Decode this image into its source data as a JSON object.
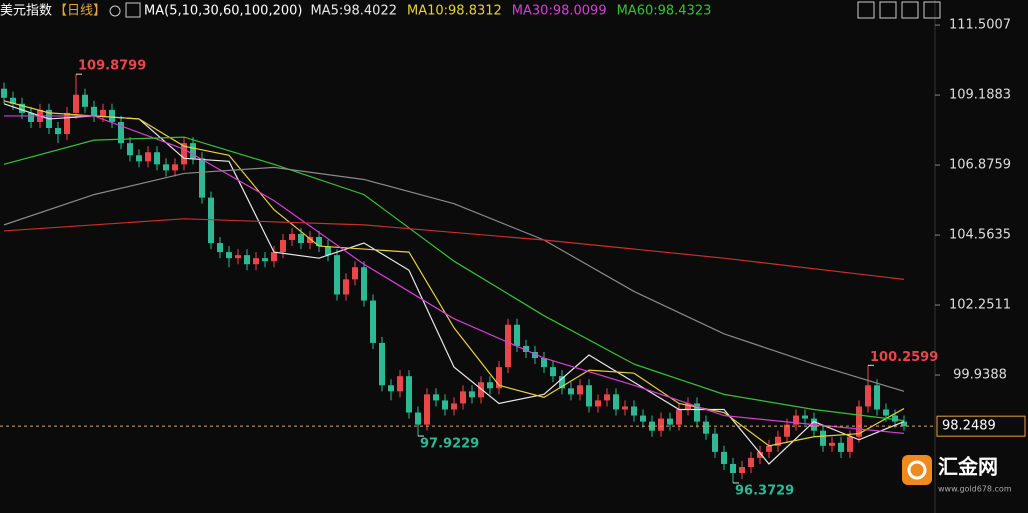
{
  "chart_data": {
    "type": "candlestick",
    "title": "美元指数",
    "period": "【日线】",
    "ma_label": "MA(5,10,30,60,100,200)",
    "up_color": "#e8464b",
    "down_color": "#2fb894",
    "open": [
      109.4,
      109.1,
      108.9,
      108.6,
      108.3,
      108.7,
      108.1,
      107.9,
      108.6,
      109.2,
      108.8,
      108.5,
      108.7,
      108.3,
      107.6,
      107.2,
      107.0,
      107.3,
      106.9,
      106.7,
      106.9,
      107.6,
      107.1,
      105.8,
      104.3,
      104.0,
      103.8,
      103.9,
      103.6,
      103.8,
      103.7,
      104.0,
      104.4,
      104.6,
      104.3,
      104.5,
      104.2,
      103.9,
      102.6,
      103.1,
      103.5,
      102.4,
      101.0,
      99.6,
      99.4,
      99.9,
      98.7,
      98.3,
      99.3,
      99.1,
      98.8,
      99.0,
      99.4,
      99.2,
      99.7,
      99.5,
      100.2,
      101.6,
      100.9,
      100.7,
      100.5,
      100.2,
      99.9,
      99.5,
      99.3,
      99.6,
      98.9,
      99.1,
      99.3,
      98.8,
      98.9,
      98.6,
      98.4,
      98.1,
      98.5,
      98.3,
      98.8,
      99.0,
      98.4,
      98.0,
      97.4,
      97.0,
      96.7,
      96.9,
      97.2,
      97.4,
      97.6,
      97.9,
      98.3,
      98.6,
      98.5,
      98.1,
      97.6,
      97.7,
      97.4,
      97.9,
      98.9,
      99.6,
      98.8,
      98.6,
      98.4
    ],
    "high": [
      109.6,
      109.3,
      109.1,
      108.8,
      108.9,
      108.9,
      108.3,
      108.8,
      109.8799,
      109.4,
      109.0,
      108.9,
      108.9,
      108.5,
      107.8,
      107.4,
      107.5,
      107.5,
      107.1,
      107.1,
      107.8,
      107.8,
      107.3,
      106.0,
      104.5,
      104.2,
      104.1,
      104.1,
      104.0,
      104.0,
      104.2,
      104.6,
      104.8,
      104.8,
      104.7,
      104.7,
      104.4,
      104.1,
      103.3,
      103.7,
      103.7,
      102.6,
      101.2,
      99.8,
      100.1,
      100.1,
      98.9,
      99.5,
      99.5,
      99.3,
      99.2,
      99.6,
      99.6,
      99.9,
      99.9,
      100.4,
      101.8,
      101.8,
      101.1,
      100.9,
      100.7,
      100.4,
      100.1,
      99.7,
      99.8,
      99.8,
      99.3,
      99.5,
      99.5,
      99.1,
      99.1,
      98.8,
      98.6,
      98.7,
      98.7,
      99.0,
      99.2,
      99.2,
      98.6,
      98.2,
      97.6,
      97.2,
      97.1,
      97.4,
      97.6,
      97.8,
      98.1,
      98.5,
      98.8,
      98.8,
      98.7,
      98.3,
      97.9,
      97.9,
      98.1,
      99.1,
      100.2599,
      99.8,
      99.0,
      98.8,
      98.6
    ],
    "low": [
      108.9,
      108.7,
      108.4,
      108.1,
      108.1,
      107.9,
      107.6,
      107.7,
      108.4,
      108.6,
      108.3,
      108.3,
      108.1,
      107.4,
      107.0,
      106.8,
      106.8,
      106.7,
      106.5,
      106.5,
      106.7,
      106.9,
      105.6,
      104.1,
      103.8,
      103.5,
      103.6,
      103.4,
      103.4,
      103.5,
      103.5,
      103.8,
      104.2,
      104.1,
      104.1,
      104.0,
      103.7,
      102.4,
      102.4,
      102.9,
      102.2,
      100.8,
      99.4,
      99.1,
      99.2,
      98.5,
      97.9229,
      98.1,
      98.9,
      98.6,
      98.6,
      98.8,
      99.0,
      99.0,
      99.3,
      99.3,
      100.0,
      100.7,
      100.5,
      100.3,
      100.0,
      99.7,
      99.3,
      99.1,
      99.1,
      98.7,
      98.7,
      98.9,
      98.6,
      98.6,
      98.4,
      98.2,
      97.9,
      97.9,
      98.1,
      98.1,
      98.6,
      98.2,
      97.8,
      97.2,
      96.8,
      96.3729,
      96.5,
      96.7,
      97.0,
      97.2,
      97.4,
      97.7,
      98.1,
      98.3,
      97.9,
      97.4,
      97.4,
      97.2,
      97.2,
      97.7,
      98.7,
      98.6,
      98.4,
      98.2,
      98.1
    ],
    "close": [
      109.1,
      108.9,
      108.6,
      108.3,
      108.7,
      108.1,
      107.9,
      108.6,
      109.2,
      108.8,
      108.5,
      108.7,
      108.3,
      107.6,
      107.2,
      107.0,
      107.3,
      106.9,
      106.7,
      106.9,
      107.6,
      107.1,
      105.8,
      104.3,
      104.0,
      103.8,
      103.9,
      103.6,
      103.8,
      103.7,
      104.0,
      104.4,
      104.6,
      104.3,
      104.5,
      104.2,
      103.9,
      102.6,
      103.1,
      103.5,
      102.4,
      101.0,
      99.6,
      99.4,
      99.9,
      98.7,
      98.3,
      99.3,
      99.1,
      98.8,
      99.0,
      99.4,
      99.2,
      99.7,
      99.5,
      100.2,
      101.6,
      100.9,
      100.7,
      100.5,
      100.2,
      99.9,
      99.5,
      99.3,
      99.6,
      98.9,
      99.1,
      99.3,
      98.8,
      98.9,
      98.6,
      98.4,
      98.1,
      98.5,
      98.3,
      98.8,
      99.0,
      98.4,
      98.0,
      97.4,
      97.0,
      96.7,
      96.9,
      97.2,
      97.4,
      97.6,
      97.9,
      98.3,
      98.6,
      98.5,
      98.1,
      97.6,
      97.7,
      97.4,
      97.9,
      98.9,
      99.6,
      98.8,
      98.6,
      98.4,
      98.2489
    ],
    "series": [
      {
        "name": "MA5:98.4022",
        "color": "#e8e8e8",
        "x": [
          0,
          5,
          10,
          15,
          20,
          25,
          30,
          35,
          40,
          45,
          50,
          55,
          60,
          65,
          70,
          75,
          80,
          85,
          90,
          95,
          100
        ],
        "values": [
          108.9,
          108.4,
          108.5,
          108.4,
          107.1,
          107.0,
          104.0,
          103.8,
          104.3,
          103.4,
          100.2,
          99.0,
          99.3,
          100.6,
          99.7,
          98.8,
          98.8,
          97.0,
          98.4,
          97.8,
          98.4022
        ]
      },
      {
        "name": "MA10:98.8312",
        "color": "#e6d13b",
        "x": [
          0,
          5,
          10,
          15,
          20,
          25,
          30,
          35,
          40,
          45,
          50,
          55,
          60,
          65,
          70,
          75,
          80,
          85,
          90,
          95,
          100
        ],
        "values": [
          109.0,
          108.6,
          108.5,
          108.4,
          107.5,
          107.2,
          105.4,
          104.2,
          104.1,
          104.0,
          101.5,
          99.6,
          99.2,
          100.1,
          100.0,
          99.0,
          98.7,
          97.6,
          97.9,
          98.0,
          98.8312
        ]
      },
      {
        "name": "MA30:98.0099",
        "color": "#d63fd6",
        "x": [
          0,
          10,
          20,
          30,
          40,
          50,
          60,
          70,
          80,
          90,
          100
        ],
        "values": [
          108.5,
          108.5,
          107.4,
          105.7,
          103.6,
          101.8,
          100.5,
          99.6,
          98.6,
          98.3,
          98.0099
        ]
      },
      {
        "name": "MA60:98.4323",
        "color": "#36c236",
        "x": [
          0,
          10,
          20,
          30,
          40,
          50,
          60,
          70,
          80,
          90,
          100
        ],
        "values": [
          106.9,
          107.7,
          107.8,
          106.9,
          105.9,
          103.7,
          101.9,
          100.3,
          99.3,
          98.8,
          98.4323
        ]
      },
      {
        "color": "#8a8a8a",
        "x": [
          0,
          10,
          20,
          30,
          40,
          50,
          60,
          70,
          80,
          90,
          100
        ],
        "values": [
          104.9,
          105.9,
          106.6,
          106.8,
          106.4,
          105.6,
          104.4,
          102.7,
          101.3,
          100.3,
          99.4
        ]
      },
      {
        "color": "#c8302c",
        "x": [
          0,
          20,
          40,
          60,
          80,
          100
        ],
        "values": [
          104.7,
          105.1,
          104.9,
          104.4,
          103.8,
          103.1
        ]
      }
    ],
    "ylim": [
      95.38,
      112.33
    ],
    "yticks": [
      111.5007,
      109.1883,
      106.8759,
      104.5635,
      102.2511,
      99.9388
    ],
    "grid": false
  },
  "watermark": {
    "brand": "汇金网",
    "url": "www.gold678.com"
  }
}
